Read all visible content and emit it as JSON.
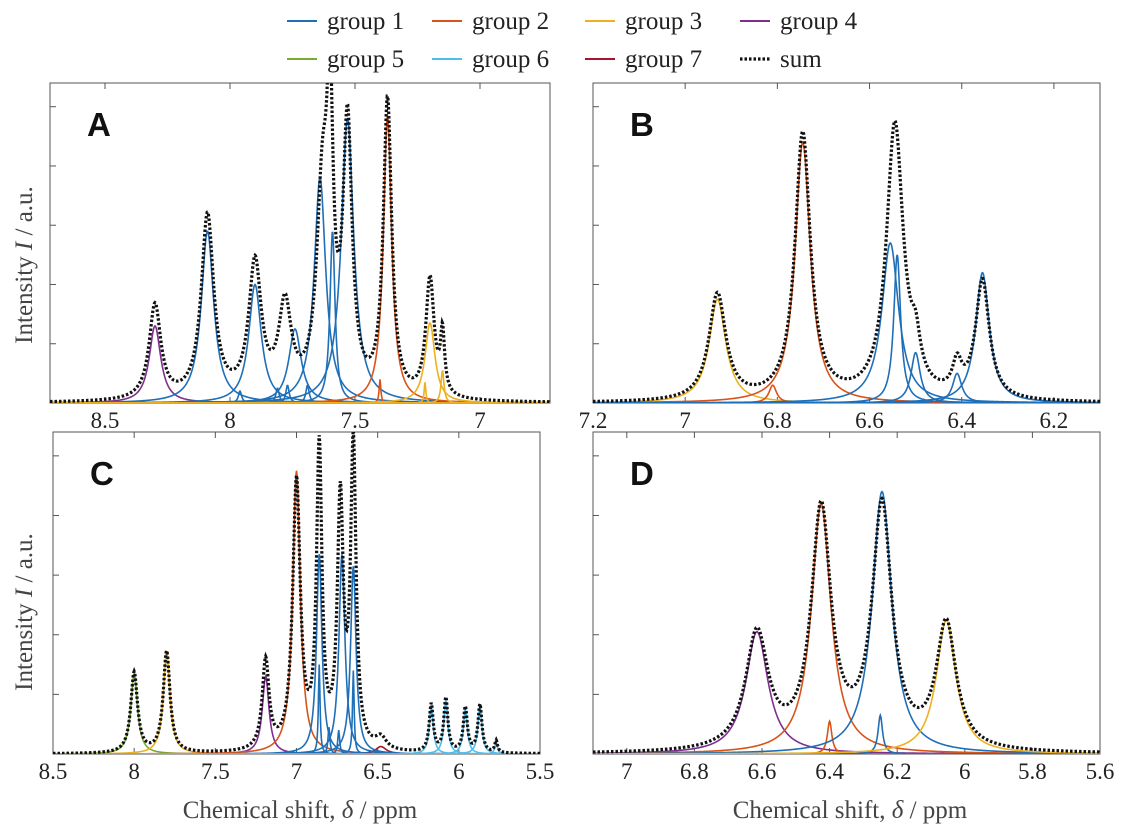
{
  "colors": {
    "group 1": "#1f6fb8",
    "group 2": "#d95319",
    "group 3": "#edb120",
    "group 4": "#7e2f8e",
    "group 5": "#77ac30",
    "group 6": "#4dbeee",
    "group 7": "#a2142f",
    "sum": "#111111"
  },
  "legend": {
    "entries": [
      {
        "label": "group 1",
        "style": "solid"
      },
      {
        "label": "group 2",
        "style": "solid"
      },
      {
        "label": "group 3",
        "style": "solid"
      },
      {
        "label": "group 4",
        "style": "solid"
      },
      {
        "label": "group 5",
        "style": "solid"
      },
      {
        "label": "group 6",
        "style": "solid"
      },
      {
        "label": "group 7",
        "style": "solid"
      },
      {
        "label": "sum",
        "style": "dotted"
      }
    ]
  },
  "axes": {
    "ylabel": "Intensity",
    "ylabel_symbol": "I",
    "ylabel_unit": " / a.u.",
    "xlabel": "Chemical shift, ",
    "xlabel_symbol": "δ",
    "xlabel_unit": " / ppm"
  },
  "chart_data": [
    {
      "type": "line",
      "panel": "A",
      "xlim": [
        8.72,
        6.72
      ],
      "xticks": [
        "8.5",
        "8",
        "7.5",
        "7"
      ],
      "xtick_values": [
        8.5,
        8.0,
        7.5,
        7.0
      ],
      "ylim": [
        0,
        1.08
      ],
      "peaks": [
        {
          "group": "group 4",
          "x": 8.3,
          "h": 0.26,
          "w": 0.028
        },
        {
          "group": "group 1",
          "x": 8.09,
          "h": 0.58,
          "w": 0.03
        },
        {
          "group": "group 1",
          "x": 7.9,
          "h": 0.4,
          "w": 0.03
        },
        {
          "group": "group 1",
          "x": 7.74,
          "h": 0.25,
          "w": 0.03
        },
        {
          "group": "group 1",
          "x": 7.81,
          "h": 0.05,
          "w": 0.008
        },
        {
          "group": "group 1",
          "x": 7.77,
          "h": 0.06,
          "w": 0.008
        },
        {
          "group": "group 1",
          "x": 7.69,
          "h": 0.06,
          "w": 0.008
        },
        {
          "group": "group 1",
          "x": 7.64,
          "h": 0.76,
          "w": 0.028
        },
        {
          "group": "group 1",
          "x": 7.59,
          "h": 0.58,
          "w": 0.012
        },
        {
          "group": "group 1",
          "x": 7.53,
          "h": 0.96,
          "w": 0.03
        },
        {
          "group": "group 1",
          "x": 7.96,
          "h": 0.04,
          "w": 0.008
        },
        {
          "group": "group 2",
          "x": 7.37,
          "h": 0.97,
          "w": 0.02
        },
        {
          "group": "group 2",
          "x": 7.4,
          "h": 0.08,
          "w": 0.004
        },
        {
          "group": "group 3",
          "x": 7.2,
          "h": 0.27,
          "w": 0.024
        },
        {
          "group": "group 3",
          "x": 7.22,
          "h": 0.07,
          "w": 0.004
        },
        {
          "group": "group 3",
          "x": 7.15,
          "h": 0.11,
          "w": 0.007
        }
      ],
      "sum_peaks": [
        {
          "x": 8.3,
          "h": 0.32,
          "w": 0.028
        },
        {
          "x": 8.09,
          "h": 0.62,
          "w": 0.03
        },
        {
          "x": 7.9,
          "h": 0.45,
          "w": 0.03
        },
        {
          "x": 7.78,
          "h": 0.3,
          "w": 0.03
        },
        {
          "x": 7.63,
          "h": 0.66,
          "w": 0.028
        },
        {
          "x": 7.6,
          "h": 0.82,
          "w": 0.015
        },
        {
          "x": 7.53,
          "h": 0.9,
          "w": 0.022
        },
        {
          "x": 7.37,
          "h": 1.0,
          "w": 0.02
        },
        {
          "x": 7.2,
          "h": 0.4,
          "w": 0.02
        },
        {
          "x": 7.15,
          "h": 0.2,
          "w": 0.01
        }
      ]
    },
    {
      "type": "line",
      "panel": "B",
      "xlim": [
        7.2,
        6.1
      ],
      "xticks": [
        "7.2",
        "7",
        "6.8",
        "6.6",
        "6.4",
        "6.2"
      ],
      "xtick_values": [
        7.2,
        7.0,
        6.8,
        6.6,
        6.4,
        6.2
      ],
      "ylim": [
        0,
        1.08
      ],
      "peaks": [
        {
          "group": "group 3",
          "x": 6.93,
          "h": 0.35,
          "w": 0.022
        },
        {
          "group": "group 2",
          "x": 6.81,
          "h": 0.06,
          "w": 0.01
        },
        {
          "group": "group 2",
          "x": 6.745,
          "h": 0.88,
          "w": 0.02
        },
        {
          "group": "group 1",
          "x": 6.555,
          "h": 0.54,
          "w": 0.022
        },
        {
          "group": "group 1",
          "x": 6.54,
          "h": 0.5,
          "w": 0.009
        },
        {
          "group": "group 1",
          "x": 6.5,
          "h": 0.17,
          "w": 0.012
        },
        {
          "group": "group 1",
          "x": 6.41,
          "h": 0.1,
          "w": 0.012
        },
        {
          "group": "group 1",
          "x": 6.355,
          "h": 0.44,
          "w": 0.018
        }
      ],
      "sum_peaks": [
        {
          "x": 6.93,
          "h": 0.36,
          "w": 0.022
        },
        {
          "x": 6.745,
          "h": 0.9,
          "w": 0.02
        },
        {
          "x": 6.545,
          "h": 0.93,
          "w": 0.022
        },
        {
          "x": 6.5,
          "h": 0.12,
          "w": 0.012
        },
        {
          "x": 6.41,
          "h": 0.1,
          "w": 0.012
        },
        {
          "x": 6.355,
          "h": 0.4,
          "w": 0.018
        }
      ]
    },
    {
      "type": "line",
      "panel": "C",
      "xlim": [
        8.5,
        5.5
      ],
      "xticks": [
        "8.5",
        "8",
        "7.5",
        "7",
        "6.5",
        "6",
        "5.5"
      ],
      "xtick_values": [
        8.5,
        8.0,
        7.5,
        7.0,
        6.5,
        6.0,
        5.5
      ],
      "ylim": [
        0,
        1.08
      ],
      "peaks": [
        {
          "group": "group 5",
          "x": 8.0,
          "h": 0.27,
          "w": 0.025
        },
        {
          "group": "group 3",
          "x": 7.8,
          "h": 0.34,
          "w": 0.025
        },
        {
          "group": "group 4",
          "x": 7.19,
          "h": 0.26,
          "w": 0.025
        },
        {
          "group": "group 2",
          "x": 7.0,
          "h": 0.95,
          "w": 0.028
        },
        {
          "group": "group 7",
          "x": 6.48,
          "h": 0.025,
          "w": 0.04
        },
        {
          "group": "group 1",
          "x": 6.86,
          "h": 0.67,
          "w": 0.02
        },
        {
          "group": "group 1",
          "x": 6.86,
          "h": 0.3,
          "w": 0.006
        },
        {
          "group": "group 1",
          "x": 6.72,
          "h": 0.67,
          "w": 0.022
        },
        {
          "group": "group 1",
          "x": 6.8,
          "h": 0.09,
          "w": 0.007
        },
        {
          "group": "group 1",
          "x": 6.74,
          "h": 0.08,
          "w": 0.007
        },
        {
          "group": "group 1",
          "x": 6.65,
          "h": 0.63,
          "w": 0.02
        },
        {
          "group": "group 1",
          "x": 6.65,
          "h": 0.28,
          "w": 0.006
        },
        {
          "group": "group 6",
          "x": 6.17,
          "h": 0.16,
          "w": 0.015
        },
        {
          "group": "group 6",
          "x": 6.08,
          "h": 0.18,
          "w": 0.015
        },
        {
          "group": "group 6",
          "x": 5.96,
          "h": 0.15,
          "w": 0.015
        },
        {
          "group": "group 6",
          "x": 5.87,
          "h": 0.16,
          "w": 0.015
        },
        {
          "group": "group 6",
          "x": 5.77,
          "h": 0.04,
          "w": 0.01
        }
      ],
      "sum_peaks": [
        {
          "x": 8.0,
          "h": 0.27,
          "w": 0.025
        },
        {
          "x": 7.8,
          "h": 0.34,
          "w": 0.025
        },
        {
          "x": 7.19,
          "h": 0.3,
          "w": 0.025
        },
        {
          "x": 7.0,
          "h": 0.9,
          "w": 0.028
        },
        {
          "x": 6.86,
          "h": 1.0,
          "w": 0.02
        },
        {
          "x": 6.73,
          "h": 0.82,
          "w": 0.022
        },
        {
          "x": 6.65,
          "h": 1.01,
          "w": 0.02
        },
        {
          "x": 6.48,
          "h": 0.04,
          "w": 0.04
        },
        {
          "x": 6.17,
          "h": 0.16,
          "w": 0.015
        },
        {
          "x": 6.08,
          "h": 0.18,
          "w": 0.015
        },
        {
          "x": 5.96,
          "h": 0.15,
          "w": 0.015
        },
        {
          "x": 5.87,
          "h": 0.16,
          "w": 0.015
        },
        {
          "x": 5.77,
          "h": 0.04,
          "w": 0.01
        }
      ]
    },
    {
      "type": "line",
      "panel": "D",
      "xlim": [
        7.1,
        5.6
      ],
      "xticks": [
        "7",
        "6.8",
        "6.6",
        "6.4",
        "6.2",
        "6",
        "5.8",
        "5.6"
      ],
      "xtick_values": [
        7.0,
        6.8,
        6.6,
        6.4,
        6.2,
        6.0,
        5.8,
        5.6
      ],
      "ylim": [
        0,
        1.08
      ],
      "peaks": [
        {
          "group": "group 4",
          "x": 6.615,
          "h": 0.41,
          "w": 0.04
        },
        {
          "group": "group 2",
          "x": 6.425,
          "h": 0.84,
          "w": 0.035
        },
        {
          "group": "group 2",
          "x": 6.4,
          "h": 0.11,
          "w": 0.008
        },
        {
          "group": "group 1",
          "x": 6.245,
          "h": 0.88,
          "w": 0.035
        },
        {
          "group": "group 1",
          "x": 6.25,
          "h": 0.13,
          "w": 0.008
        },
        {
          "group": "group 3",
          "x": 6.055,
          "h": 0.45,
          "w": 0.035
        }
      ],
      "sum_peaks": [
        {
          "x": 6.615,
          "h": 0.39,
          "w": 0.04
        },
        {
          "x": 6.425,
          "h": 0.8,
          "w": 0.035
        },
        {
          "x": 6.245,
          "h": 0.81,
          "w": 0.035
        },
        {
          "x": 6.055,
          "h": 0.42,
          "w": 0.035
        }
      ]
    }
  ]
}
